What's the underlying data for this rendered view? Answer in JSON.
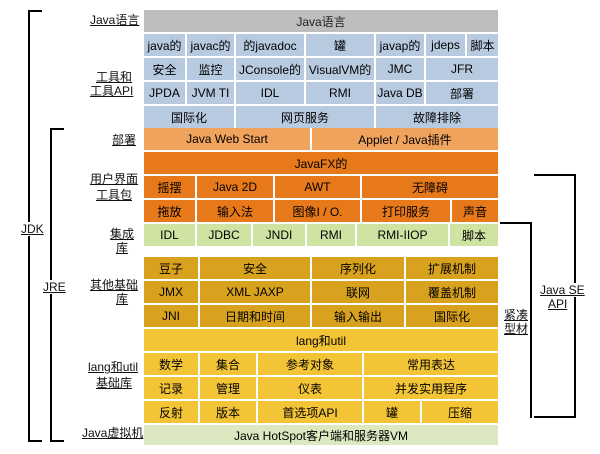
{
  "left": {
    "jdk": "JDK",
    "jre": "JRE",
    "java_lang": "Java语言",
    "tools_api": [
      "工具和",
      "工具API"
    ],
    "deploy": "部署",
    "ui_toolkit": [
      "用户界面",
      "工具包"
    ],
    "integration": [
      "集成",
      "库"
    ],
    "other_base": [
      "其他基础",
      "库"
    ],
    "lang_util_base": [
      "lang和util",
      "基础库"
    ],
    "jvm": "Java虚拟机"
  },
  "right": {
    "compact": [
      "紧凑",
      "型材"
    ],
    "java_se_api": [
      "Java SE",
      "API"
    ]
  },
  "rows": {
    "java_lang": "Java语言",
    "tools1": [
      "java的",
      "javac的",
      "的javadoc",
      "罐",
      "javap的",
      "jdeps",
      "脚本"
    ],
    "tools2": [
      "安全",
      "监控",
      "JConsole的",
      "VisualVM的",
      "JMC",
      "JFR"
    ],
    "tools3": [
      "JPDA",
      "JVM TI",
      "IDL",
      "RMI",
      "Java DB",
      "部署"
    ],
    "tools4": [
      "国际化",
      "网页服务",
      "故障排除"
    ],
    "deploy": [
      "Java Web Start",
      "Applet / Java插件"
    ],
    "javafx": "JavaFX的",
    "ui1": [
      "摇摆",
      "Java 2D",
      "AWT",
      "无障碍"
    ],
    "ui2": [
      "拖放",
      "输入法",
      "图像I / O.",
      "打印服务",
      "声音"
    ],
    "integration": [
      "IDL",
      "JDBC",
      "JNDI",
      "RMI",
      "RMI-IIOP",
      "脚本"
    ],
    "other1": [
      "豆子",
      "安全",
      "序列化",
      "扩展机制"
    ],
    "other2": [
      "JMX",
      "XML JAXP",
      "联网",
      "覆盖机制"
    ],
    "other3": [
      "JNI",
      "日期和时间",
      "输入输出",
      "国际化"
    ],
    "lang_util": "lang和util",
    "lu1": [
      "数学",
      "集合",
      "参考对象",
      "常用表达"
    ],
    "lu2": [
      "记录",
      "管理",
      "仪表",
      "并发实用程序"
    ],
    "lu3": [
      "反射",
      "版本",
      "首选项API",
      "罐",
      "压缩"
    ],
    "jvm": "Java HotSpot客户端和服务器VM"
  },
  "colors": {
    "gray": "#bdbdbd",
    "blue": "#b7cadf",
    "orange": "#f0a35c",
    "dark_orange": "#e8791a",
    "green": "#cfe3a3",
    "gold": "#d9a21e",
    "yellow": "#f4c437",
    "light_green": "#dbe8c0"
  }
}
